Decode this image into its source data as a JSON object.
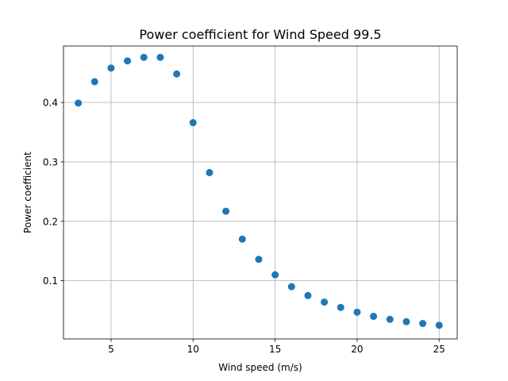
{
  "chart_data": {
    "type": "scatter",
    "title": "Power coefficient for Wind Speed 99.5",
    "xlabel": "Wind speed (m/s)",
    "ylabel": "Power coefficient",
    "xlim": [
      2.1,
      26.1
    ],
    "ylim": [
      0.002,
      0.495
    ],
    "xticks": [
      5,
      10,
      15,
      20,
      25
    ],
    "yticks": [
      0.1,
      0.2,
      0.3,
      0.4
    ],
    "ytick_labels": [
      "0.1",
      "0.2",
      "0.3",
      "0.4"
    ],
    "grid": true,
    "marker_color": "#1f77b4",
    "series": [
      {
        "x": [
          3,
          4,
          5,
          6,
          7,
          8,
          9,
          10,
          11,
          12,
          13,
          14,
          15,
          16,
          17,
          18,
          19,
          20,
          21,
          22,
          23,
          24,
          25
        ],
        "y": [
          0.399,
          0.435,
          0.458,
          0.47,
          0.476,
          0.476,
          0.448,
          0.366,
          0.282,
          0.217,
          0.17,
          0.136,
          0.11,
          0.09,
          0.075,
          0.064,
          0.055,
          0.047,
          0.04,
          0.035,
          0.031,
          0.028,
          0.025
        ]
      }
    ]
  }
}
